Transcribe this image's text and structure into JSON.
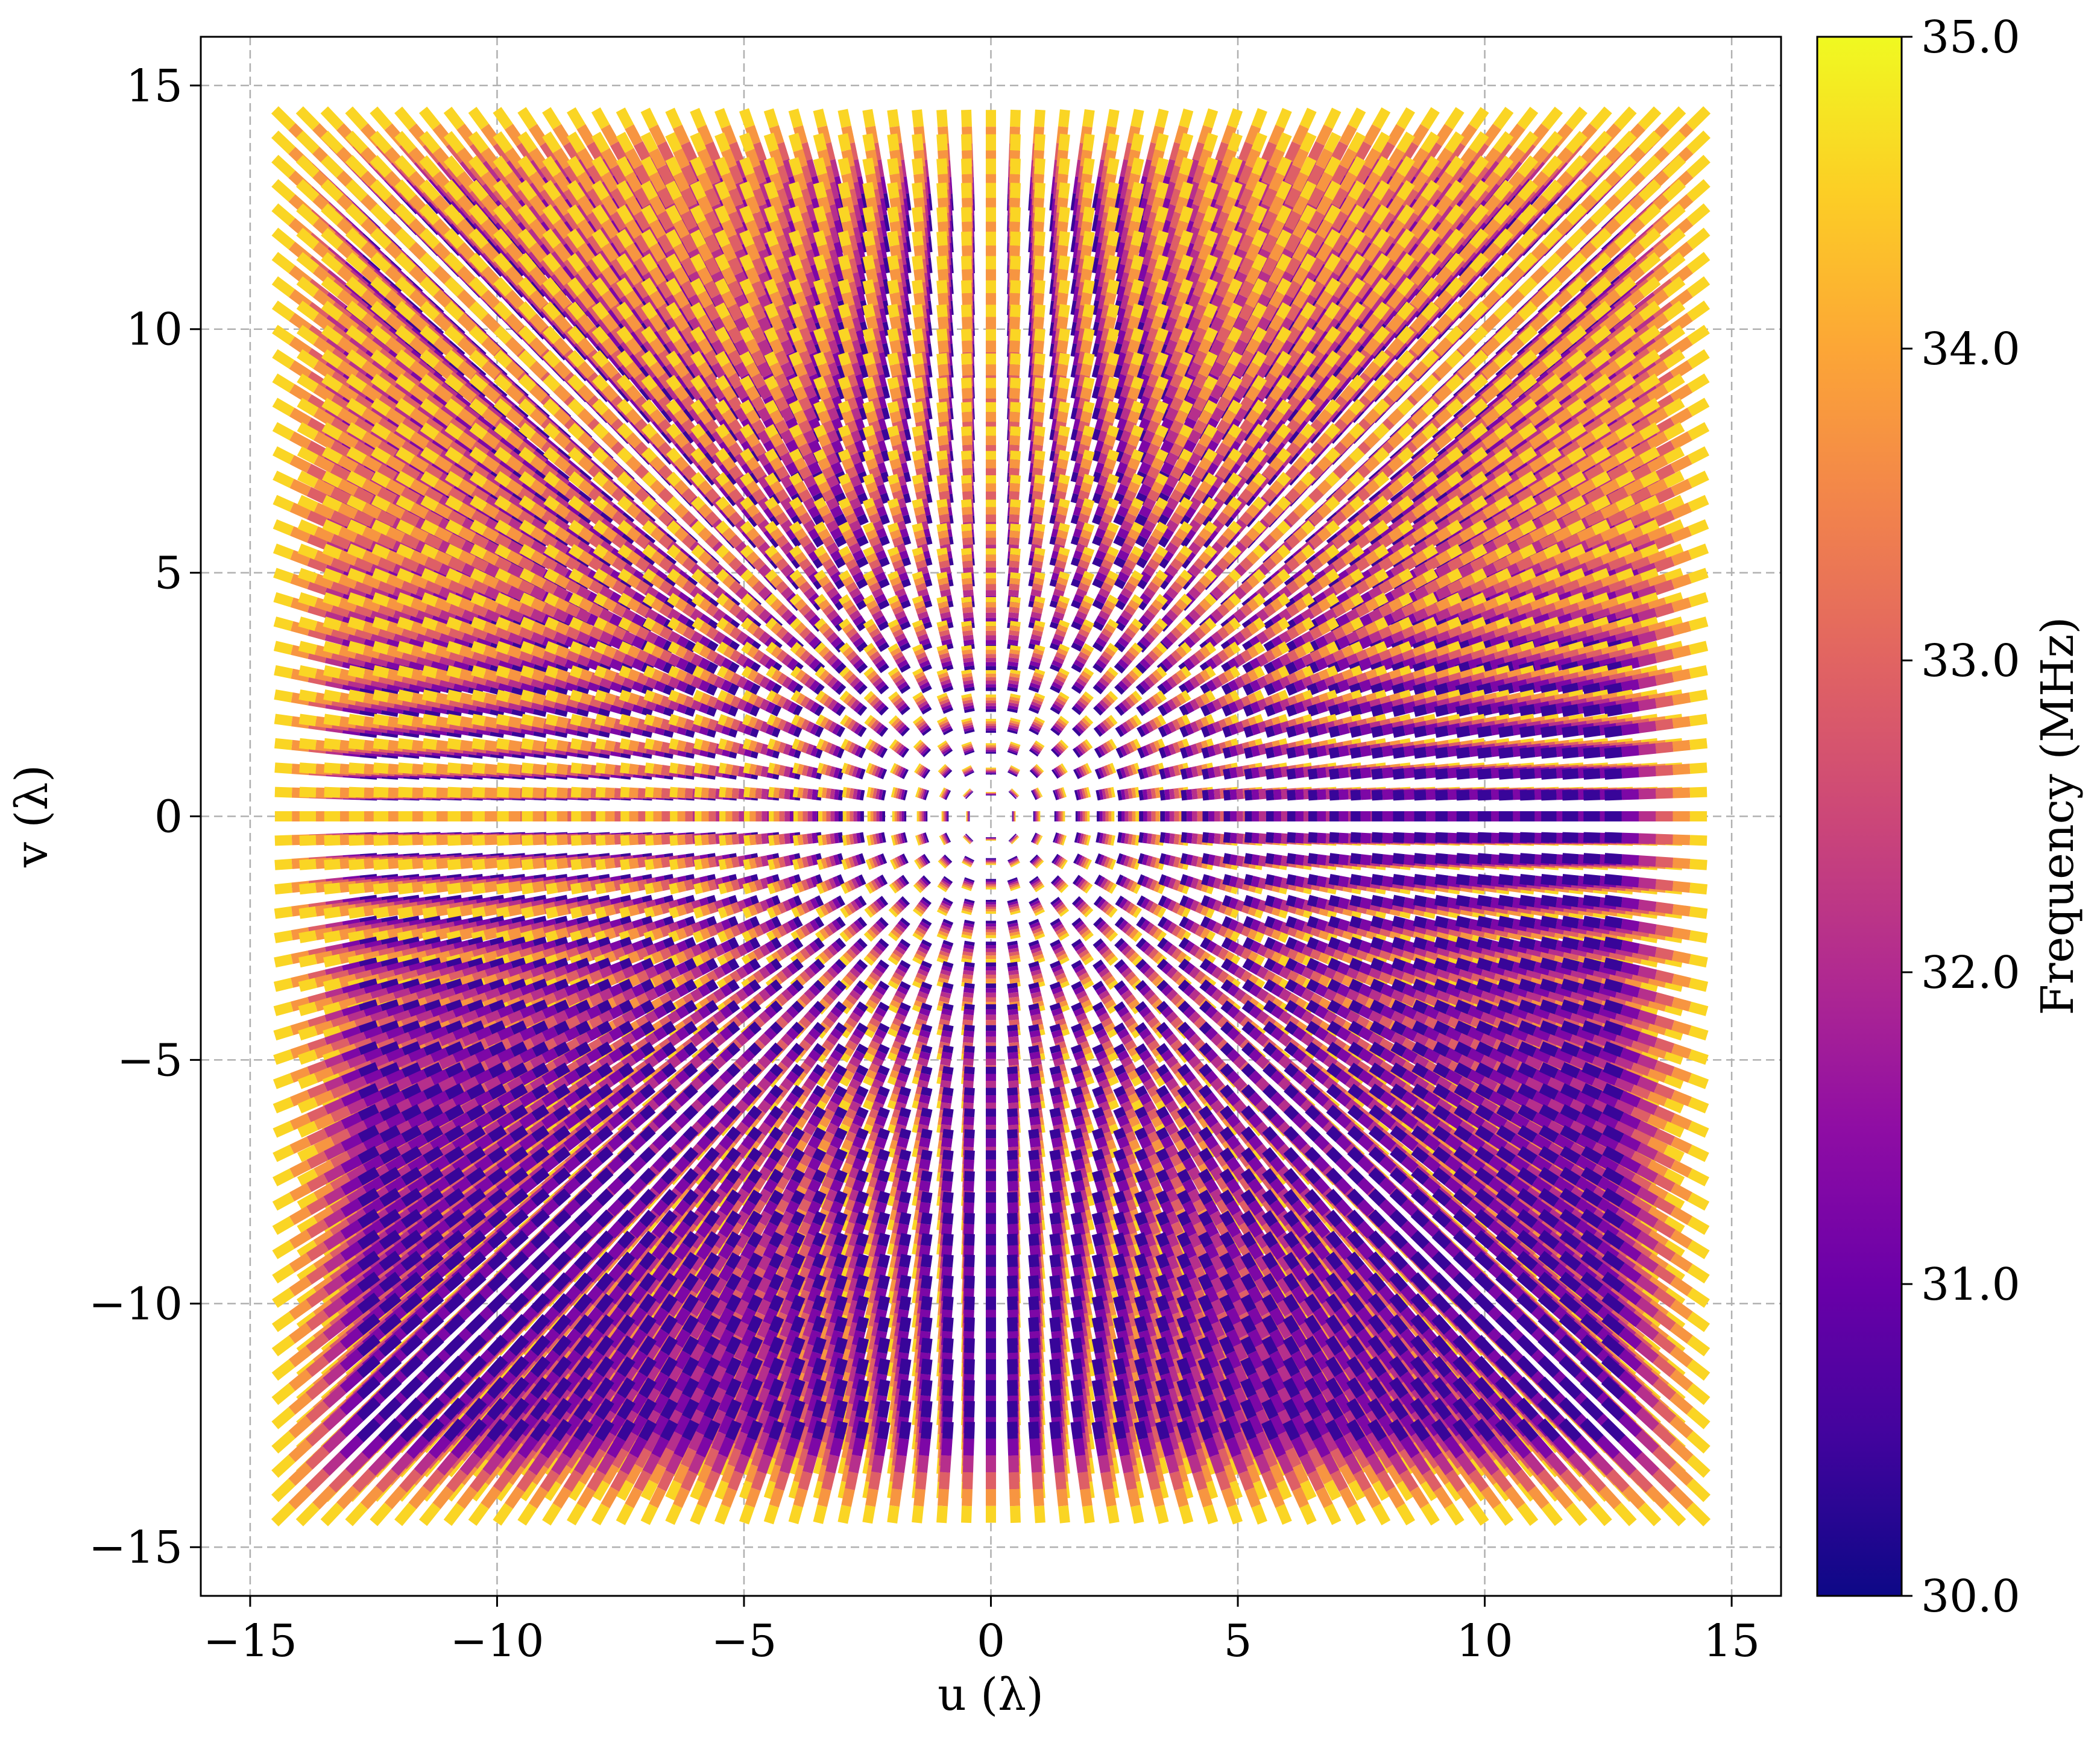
{
  "chart_data": {
    "type": "scatter",
    "description_free": true,
    "xlabel": "u (λ)",
    "ylabel": "v (λ)",
    "xlim": [
      -16,
      16
    ],
    "ylim": [
      -16,
      16
    ],
    "xticks": [
      -15,
      -10,
      -5,
      0,
      5,
      10,
      15
    ],
    "yticks": [
      -15,
      -10,
      -5,
      0,
      5,
      10,
      15
    ],
    "xtick_labels": [
      "−15",
      "−10",
      "−5",
      "0",
      "5",
      "10",
      "15"
    ],
    "ytick_labels": [
      "−15",
      "−10",
      "−5",
      "0",
      "5",
      "10",
      "15"
    ],
    "grid": true,
    "grid_style": "dashed",
    "baseline_grid": {
      "u_min": -14.5,
      "u_max": 14.5,
      "v_min": -14.5,
      "v_max": 14.5,
      "step": 0.5
    },
    "frequency_range_mhz": [
      30.0,
      35.0
    ],
    "colormap": "plasma",
    "colorbar": {
      "label": "Frequency (MHz)",
      "min": 30.0,
      "max": 35.0,
      "ticks": [
        30.0,
        31.0,
        32.0,
        33.0,
        34.0,
        35.0
      ],
      "tick_labels": [
        "30.0",
        "31.0",
        "32.0",
        "33.0",
        "34.0",
        "35.0"
      ]
    }
  }
}
